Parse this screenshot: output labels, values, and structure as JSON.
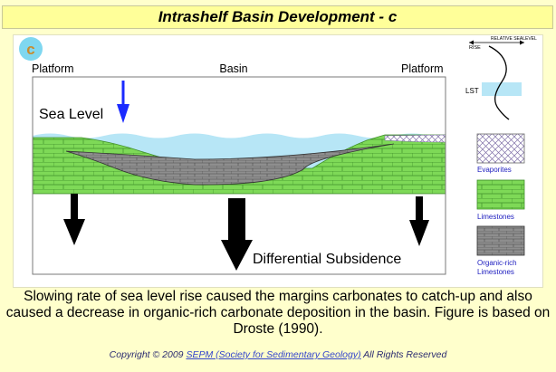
{
  "title": "Intrashelf Basin Development - c",
  "figure": {
    "panel_letter": "c",
    "labels": {
      "platform_left": "Platform",
      "basin": "Basin",
      "platform_right": "Platform",
      "sea_level": "Sea Level",
      "differential_subsidence": "Differential Subsidence"
    },
    "sea_level_curve": {
      "title": "RELATIVE SEALEVEL",
      "rise": "RISE",
      "lst": "LST"
    },
    "legend": [
      {
        "label": "Evaporites",
        "pattern": "crosshatch"
      },
      {
        "label": "Limestones",
        "pattern": "brick-green"
      },
      {
        "label": "Organic-rich Limestones",
        "pattern": "brick-gray"
      }
    ],
    "colors": {
      "water": "#b7e6f6",
      "limestone": "#7ed957",
      "organic": "#8a8a8a",
      "arrow_sea_level": "#1a2aff",
      "label_blue": "#2020c0",
      "badge": "#7fd7f0",
      "badge_letter": "#c88b2e"
    }
  },
  "caption": "Slowing rate of sea level rise caused the margins carbonates to catch-up and also caused a decrease in organic-rich carbonate deposition in the basin. Figure is based on Droste (1990).",
  "footer": {
    "prefix": "Copyright © 2009",
    "link": "SEPM (Society for Sedimentary Geology)",
    "suffix": "All Rights Reserved"
  }
}
